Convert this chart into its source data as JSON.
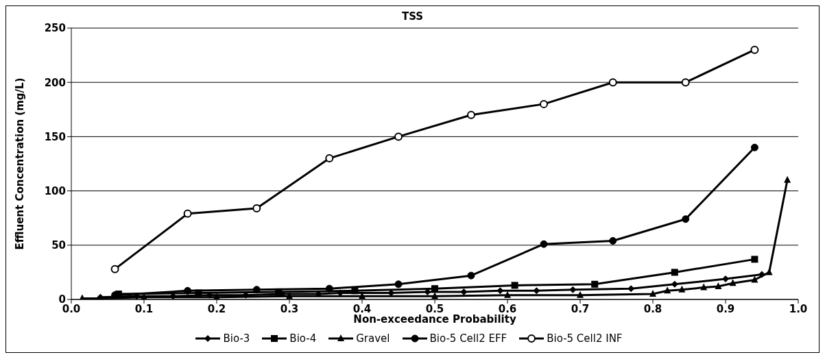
{
  "chart_data": {
    "type": "line",
    "title": "TSS",
    "xlabel": "Non-exceedance Probability",
    "ylabel": "Effluent Concentration (mg/L)",
    "xlim": [
      0,
      1
    ],
    "xticks": [
      {
        "value": 0,
        "label": "0.0"
      },
      0.1,
      0.2,
      0.3,
      0.4,
      0.5,
      0.6,
      0.7,
      0.8,
      0.9,
      {
        "value": 1,
        "label": "1.0"
      }
    ],
    "ylim": [
      0,
      250
    ],
    "yticks": [
      0,
      50,
      100,
      150,
      200,
      250
    ],
    "grid": "y",
    "legend": "bottom",
    "series": [
      {
        "name": "Bio-3",
        "color": "#000000",
        "marker": "diamond",
        "x": [
          0.04,
          0.09,
          0.14,
          0.19,
          0.24,
          0.29,
          0.34,
          0.37,
          0.44,
          0.49,
          0.54,
          0.59,
          0.64,
          0.69,
          0.77,
          0.83,
          0.9,
          0.95
        ],
        "values": [
          2,
          3,
          3,
          4,
          4,
          5,
          5,
          6,
          6,
          7,
          7,
          8,
          8,
          9,
          10,
          14,
          19,
          23
        ]
      },
      {
        "name": "Bio-4",
        "color": "#000000",
        "marker": "square",
        "x": [
          0.065,
          0.175,
          0.285,
          0.39,
          0.5,
          0.61,
          0.72,
          0.83,
          0.94
        ],
        "values": [
          5,
          6,
          7,
          8,
          10,
          13,
          14,
          25,
          37
        ]
      },
      {
        "name": "Gravel",
        "color": "#000000",
        "marker": "triangle",
        "x": [
          0.015,
          0.04,
          0.1,
          0.2,
          0.3,
          0.4,
          0.5,
          0.6,
          0.7,
          0.8,
          0.82,
          0.84,
          0.87,
          0.89,
          0.91,
          0.94,
          0.96,
          0.985
        ],
        "values": [
          1,
          1,
          2,
          2,
          3,
          3,
          3,
          4,
          4,
          5,
          8,
          9,
          11,
          12,
          15,
          18,
          25,
          110
        ]
      },
      {
        "name": "Bio-5 Cell2 EFF",
        "color": "#000000",
        "marker": "circle",
        "x": [
          0.06,
          0.16,
          0.255,
          0.355,
          0.45,
          0.55,
          0.65,
          0.745,
          0.845,
          0.94
        ],
        "values": [
          4,
          8,
          9,
          10,
          14,
          22,
          51,
          54,
          74,
          140
        ]
      },
      {
        "name": "Bio-5 Cell2 INF",
        "color": "#000000",
        "marker": "open-circle",
        "x": [
          0.06,
          0.16,
          0.255,
          0.355,
          0.45,
          0.55,
          0.65,
          0.745,
          0.845,
          0.94
        ],
        "values": [
          28,
          79,
          84,
          130,
          150,
          170,
          180,
          200,
          200,
          230
        ]
      }
    ]
  }
}
